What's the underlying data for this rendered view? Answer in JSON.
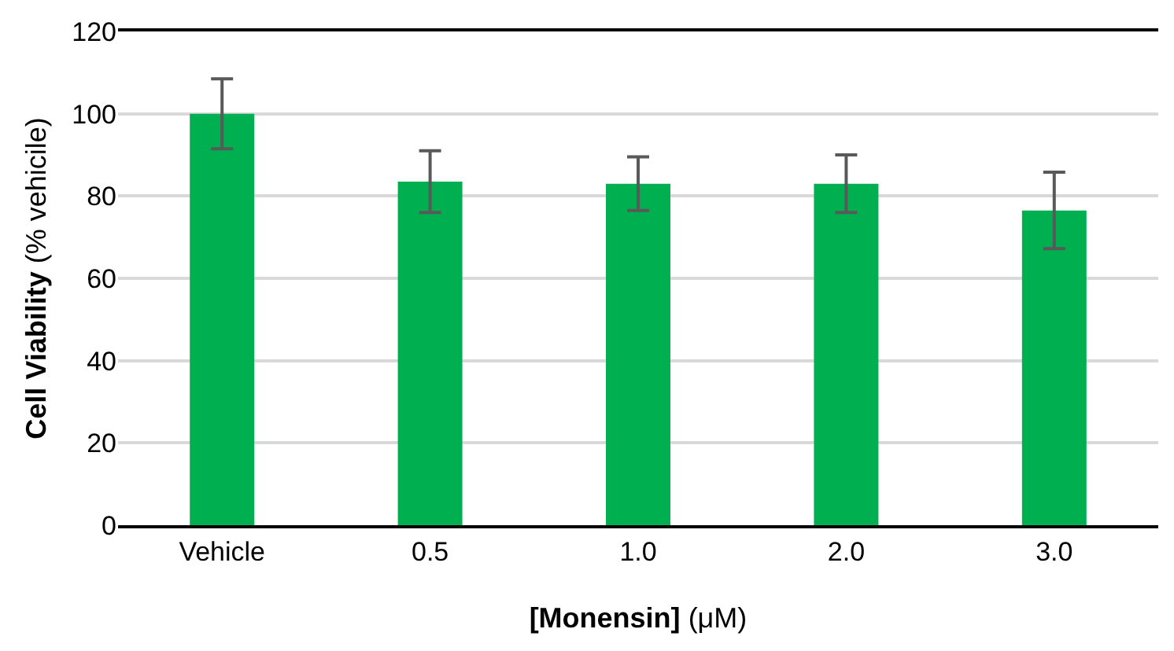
{
  "chart_data": {
    "type": "bar",
    "xlabel": "[Monensin] (μM)",
    "ylabel": "Cell Viability (% vehicile)",
    "categories": [
      "Vehicle",
      "0.5",
      "1.0",
      "2.0",
      "3.0"
    ],
    "values": [
      100,
      83.5,
      83,
      83,
      76.5
    ],
    "errors": [
      8.5,
      7.5,
      6.5,
      7,
      9.3
    ],
    "color": "#00b050",
    "ylim": [
      0,
      120
    ],
    "yticks": [
      0,
      20,
      40,
      60,
      80,
      100,
      120
    ],
    "grid": "y",
    "legend": false
  }
}
